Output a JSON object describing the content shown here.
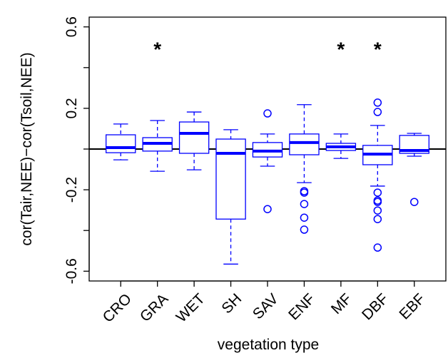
{
  "chart_data": {
    "type": "boxplot",
    "xlabel": "vegetation type",
    "ylabel": "cor(Tair,NEE)−cor(Tsoil,NEE)",
    "categories": [
      "CRO",
      "GRA",
      "WET",
      "SH",
      "SAV",
      "ENF",
      "MF",
      "DBF",
      "EBF"
    ],
    "color": "#0000ff",
    "ylim": [
      -0.648,
      0.648
    ],
    "yticks": [
      -0.6,
      -0.2,
      0.2,
      0.6
    ],
    "minor_yticks": [
      -0.4,
      0,
      0.4
    ],
    "hline": 0,
    "boxes": [
      {
        "whisker_low": -0.053,
        "q1": -0.018,
        "median": 0.007,
        "q3": 0.07,
        "whisker_high": 0.123,
        "outliers": []
      },
      {
        "whisker_low": -0.109,
        "q1": -0.01,
        "median": 0.028,
        "q3": 0.056,
        "whisker_high": 0.14,
        "outliers": []
      },
      {
        "whisker_low": -0.102,
        "q1": -0.021,
        "median": 0.077,
        "q3": 0.133,
        "whisker_high": 0.182,
        "outliers": []
      },
      {
        "whisker_low": -0.565,
        "q1": -0.344,
        "median": -0.021,
        "q3": 0.049,
        "whisker_high": 0.095,
        "outliers": []
      },
      {
        "whisker_low": -0.084,
        "q1": -0.039,
        "median": -0.01,
        "q3": 0.032,
        "whisker_high": 0.074,
        "outliers": [
          0.175,
          -0.295
        ]
      },
      {
        "whisker_low": -0.165,
        "q1": -0.028,
        "median": 0.032,
        "q3": 0.074,
        "whisker_high": 0.218,
        "outliers": [
          -0.207,
          -0.214,
          -0.27,
          -0.337,
          -0.396
        ]
      },
      {
        "whisker_low": -0.046,
        "q1": -0.007,
        "median": 0.011,
        "q3": 0.028,
        "whisker_high": 0.074,
        "outliers": []
      },
      {
        "whisker_low": -0.182,
        "q1": -0.077,
        "median": -0.025,
        "q3": 0.018,
        "whisker_high": 0.116,
        "outliers": [
          0.228,
          0.182,
          -0.214,
          -0.253,
          -0.26,
          -0.302,
          -0.344,
          -0.484
        ]
      },
      {
        "whisker_low": -0.035,
        "q1": -0.021,
        "median": -0.007,
        "q3": 0.067,
        "whisker_high": 0.077,
        "outliers": [
          -0.26
        ]
      }
    ],
    "annotations": [
      {
        "category": "GRA",
        "text": "*",
        "y": 0.5
      },
      {
        "category": "MF",
        "text": "*",
        "y": 0.5
      },
      {
        "category": "DBF",
        "text": "*",
        "y": 0.5
      }
    ]
  }
}
